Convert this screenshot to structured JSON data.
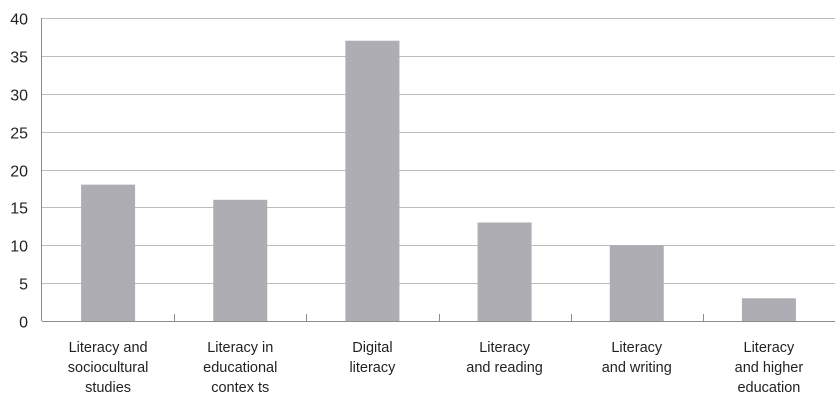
{
  "chart_data": {
    "type": "bar",
    "categories": [
      [
        "Literacy and",
        "sociocultural",
        "studies"
      ],
      [
        "Literacy in",
        "educational",
        "contex ts"
      ],
      [
        "Digital",
        "literacy"
      ],
      [
        "Literacy",
        "and reading"
      ],
      [
        "Literacy",
        "and writing"
      ],
      [
        "Literacy",
        "and higher",
        "education"
      ]
    ],
    "values": [
      18,
      16,
      37,
      13,
      10,
      3
    ],
    "ylim": [
      0,
      40
    ],
    "yticks": [
      0,
      5,
      10,
      15,
      20,
      25,
      30,
      35,
      40
    ],
    "title": "",
    "xlabel": "",
    "ylabel": "",
    "grid": true,
    "legend": "none",
    "colors": {
      "bar": "#adadb3",
      "grid": "#bdbdbd",
      "axis": "#8c8c8c",
      "text": "#231f20"
    }
  }
}
